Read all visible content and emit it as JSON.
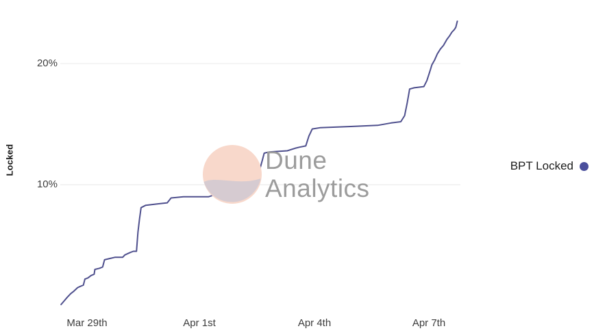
{
  "chart_data": {
    "type": "line",
    "title": "",
    "xlabel": "",
    "ylabel": "Locked",
    "x_unit": "days since Mar 29",
    "x_domain": [
      -0.6,
      9.8
    ],
    "y_domain": [
      -0.5,
      24.8
    ],
    "grid": true,
    "grid_color": "#e8e8e8",
    "y_gridlines": [
      10,
      20
    ],
    "x_ticks": [
      {
        "value": 0,
        "label": "Mar 29th"
      },
      {
        "value": 3,
        "label": "Apr 1st"
      },
      {
        "value": 6,
        "label": "Apr 4th"
      },
      {
        "value": 9,
        "label": "Apr 7th"
      }
    ],
    "y_ticks": [
      {
        "value": 10,
        "label": "10%"
      },
      {
        "value": 20,
        "label": "20%"
      }
    ],
    "legend_position": "right",
    "series": [
      {
        "name": "BPT Locked",
        "color": "#4e4f8d",
        "points": [
          [
            -0.58,
            0.1
          ],
          [
            -0.5,
            0.4
          ],
          [
            -0.42,
            0.7
          ],
          [
            -0.33,
            1.0
          ],
          [
            -0.25,
            1.2
          ],
          [
            -0.15,
            1.5
          ],
          [
            -0.08,
            1.6
          ],
          [
            0.0,
            1.7
          ],
          [
            0.04,
            2.2
          ],
          [
            0.12,
            2.3
          ],
          [
            0.2,
            2.5
          ],
          [
            0.28,
            2.6
          ],
          [
            0.3,
            3.0
          ],
          [
            0.42,
            3.1
          ],
          [
            0.5,
            3.2
          ],
          [
            0.55,
            3.8
          ],
          [
            0.68,
            3.9
          ],
          [
            0.82,
            4.0
          ],
          [
            1.02,
            4.0
          ],
          [
            1.08,
            4.2
          ],
          [
            1.22,
            4.4
          ],
          [
            1.3,
            4.5
          ],
          [
            1.38,
            4.5
          ],
          [
            1.42,
            6.1
          ],
          [
            1.46,
            7.2
          ],
          [
            1.5,
            8.1
          ],
          [
            1.62,
            8.3
          ],
          [
            1.9,
            8.4
          ],
          [
            2.18,
            8.5
          ],
          [
            2.28,
            8.9
          ],
          [
            2.6,
            9.0
          ],
          [
            3.25,
            9.0
          ],
          [
            3.45,
            9.2
          ],
          [
            3.85,
            9.3
          ],
          [
            4.1,
            9.5
          ],
          [
            4.3,
            9.6
          ],
          [
            4.45,
            9.9
          ],
          [
            4.52,
            10.4
          ],
          [
            4.58,
            11.2
          ],
          [
            4.65,
            12.0
          ],
          [
            4.7,
            12.6
          ],
          [
            4.82,
            12.7
          ],
          [
            5.3,
            12.8
          ],
          [
            5.5,
            13.0
          ],
          [
            5.62,
            13.1
          ],
          [
            5.78,
            13.2
          ],
          [
            5.86,
            14.0
          ],
          [
            5.95,
            14.6
          ],
          [
            6.15,
            14.7
          ],
          [
            6.9,
            14.8
          ],
          [
            7.65,
            14.9
          ],
          [
            8.0,
            15.1
          ],
          [
            8.25,
            15.2
          ],
          [
            8.35,
            15.7
          ],
          [
            8.42,
            16.8
          ],
          [
            8.48,
            17.9
          ],
          [
            8.6,
            18.0
          ],
          [
            8.85,
            18.1
          ],
          [
            8.93,
            18.6
          ],
          [
            9.0,
            19.3
          ],
          [
            9.06,
            19.9
          ],
          [
            9.13,
            20.3
          ],
          [
            9.2,
            20.8
          ],
          [
            9.28,
            21.2
          ],
          [
            9.36,
            21.5
          ],
          [
            9.45,
            22.0
          ],
          [
            9.52,
            22.3
          ],
          [
            9.58,
            22.6
          ],
          [
            9.64,
            22.8
          ],
          [
            9.68,
            23.0
          ],
          [
            9.72,
            23.5
          ]
        ]
      }
    ]
  },
  "legend": {
    "label": "BPT Locked",
    "dot_color": "#4a4f9c"
  },
  "watermark": {
    "line1": "Dune",
    "line2": "Analytics",
    "circle_color": "#f8d8cb",
    "swoosh_color": "#cdc8d2",
    "text_color": "#9c9c9c"
  }
}
